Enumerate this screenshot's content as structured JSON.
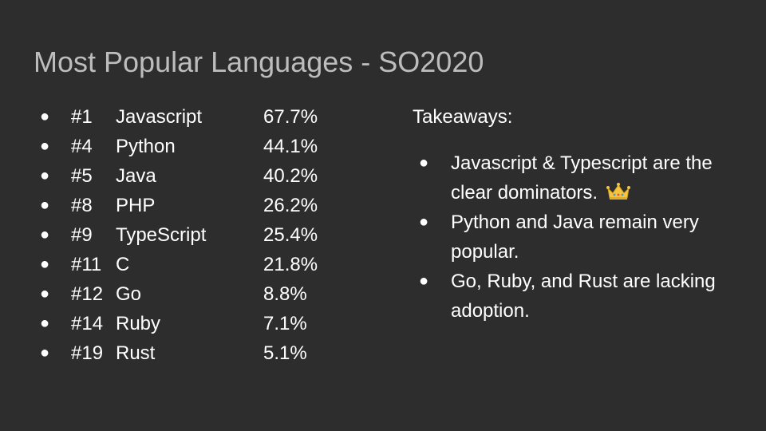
{
  "slide": {
    "title": "Most Popular Languages - SO2020",
    "bullet_glyph": "●",
    "languages": [
      {
        "rank": "#1",
        "name": "Javascript",
        "percent": "67.7%"
      },
      {
        "rank": "#4",
        "name": "Python",
        "percent": "44.1%"
      },
      {
        "rank": "#5",
        "name": "Java",
        "percent": "40.2%"
      },
      {
        "rank": "#8",
        "name": "PHP",
        "percent": "26.2%"
      },
      {
        "rank": "#9",
        "name": "TypeScript",
        "percent": "25.4%"
      },
      {
        "rank": "#11",
        "name": "C",
        "percent": "21.8%"
      },
      {
        "rank": "#12",
        "name": "Go",
        "percent": "8.8%"
      },
      {
        "rank": "#14",
        "name": "Ruby",
        "percent": "7.1%"
      },
      {
        "rank": "#19",
        "name": "Rust",
        "percent": "5.1%"
      }
    ],
    "takeaways": {
      "heading": "Takeaways:",
      "items": [
        {
          "text": "Javascript & Typescript are the clear dominators.",
          "icon": "crown-icon"
        },
        {
          "text": "Python and Java remain very popular."
        },
        {
          "text": "Go, Ruby, and Rust are lacking adoption."
        }
      ]
    },
    "colors": {
      "background": "#2d2d2d",
      "title": "#bdbdbd",
      "text": "#ffffff",
      "crown": "#f5c542"
    }
  }
}
